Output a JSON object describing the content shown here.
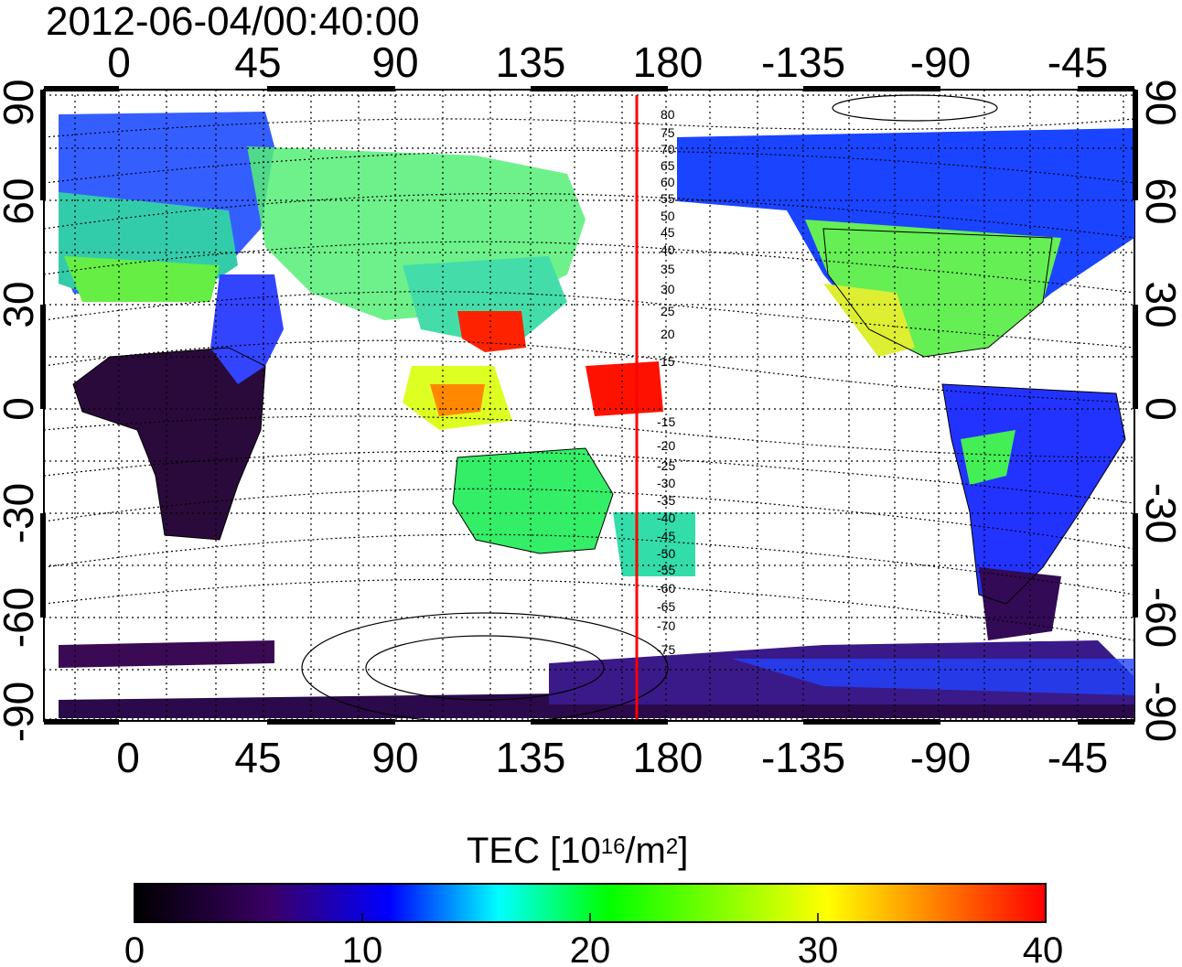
{
  "title": "2012-06-04/00:40:00",
  "map": {
    "top_axis_labels": [
      "0",
      "45",
      "90",
      "135",
      "180",
      "-135",
      "-90",
      "-45"
    ],
    "bottom_axis_labels": [
      "0",
      "45",
      "90",
      "135",
      "180",
      "-135",
      "-90",
      "-45"
    ],
    "left_axis_labels": [
      "90",
      "60",
      "30",
      "0",
      "-30",
      "-60",
      "-90"
    ],
    "right_axis_labels": [
      "90",
      "60",
      "30",
      "0",
      "-30",
      "-60",
      "-90"
    ],
    "contour_labels": [
      "80",
      "75",
      "70",
      "65",
      "60",
      "55",
      "50",
      "45",
      "40",
      "35",
      "30",
      "25",
      "20",
      "15",
      "-15",
      "-20",
      "-25",
      "-30",
      "-35",
      "-40",
      "-45",
      "-50",
      "-55",
      "-60",
      "-65",
      "-70",
      "-75"
    ],
    "meridian_line_color": "#ff0000"
  },
  "colorbar": {
    "title_prefix": "TEC  [10",
    "title_exp1": "16",
    "title_mid": "/m",
    "title_exp2": "2",
    "title_suffix": "]",
    "tick_labels": [
      "0",
      "10",
      "20",
      "30",
      "40"
    ],
    "colors": [
      "#000000",
      "#3a0066",
      "#0000ff",
      "#00ffff",
      "#00ff00",
      "#ffff00",
      "#ff0000"
    ]
  }
}
